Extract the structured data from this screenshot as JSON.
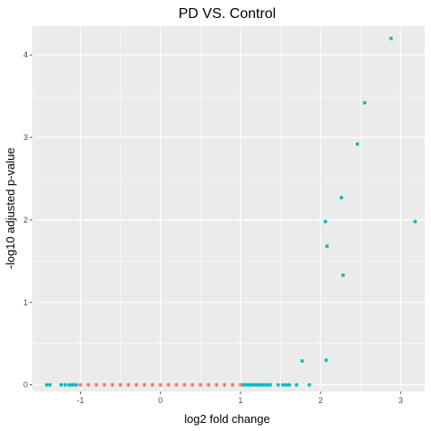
{
  "chart_data": {
    "type": "scatter",
    "title": "PD VS. Control",
    "xlabel": "log2 fold change",
    "ylabel": "-log10 adjusted p-value",
    "xlim": [
      -1.6,
      3.3
    ],
    "ylim": [
      -0.08,
      4.35
    ],
    "x_ticks": [
      -1,
      0,
      1,
      2,
      3
    ],
    "y_ticks": [
      0,
      1,
      2,
      3,
      4
    ],
    "panel_background": "#ebebeb",
    "grid": true,
    "legend": "none",
    "series": [
      {
        "color": "#00bfc4",
        "points": [
          {
            "x": 2.88,
            "y": 4.2
          },
          {
            "x": 2.55,
            "y": 3.42
          },
          {
            "x": 2.46,
            "y": 2.92
          },
          {
            "x": 2.26,
            "y": 2.27
          },
          {
            "x": 2.06,
            "y": 1.98
          },
          {
            "x": 3.18,
            "y": 1.98
          },
          {
            "x": 2.08,
            "y": 1.68
          },
          {
            "x": 2.28,
            "y": 1.33
          },
          {
            "x": 1.77,
            "y": 0.29
          },
          {
            "x": 2.07,
            "y": 0.3
          },
          {
            "x": -1.42,
            "y": 0
          },
          {
            "x": -1.38,
            "y": 0
          },
          {
            "x": -1.24,
            "y": 0
          },
          {
            "x": -1.19,
            "y": 0
          },
          {
            "x": -1.14,
            "y": 0
          },
          {
            "x": -1.11,
            "y": 0
          },
          {
            "x": -1.09,
            "y": 0
          },
          {
            "x": -1.07,
            "y": 0
          },
          {
            "x": -1.05,
            "y": 0
          },
          {
            "x": 1.01,
            "y": 0
          },
          {
            "x": 1.04,
            "y": 0
          },
          {
            "x": 1.07,
            "y": 0
          },
          {
            "x": 1.1,
            "y": 0
          },
          {
            "x": 1.13,
            "y": 0
          },
          {
            "x": 1.16,
            "y": 0
          },
          {
            "x": 1.19,
            "y": 0
          },
          {
            "x": 1.22,
            "y": 0
          },
          {
            "x": 1.25,
            "y": 0
          },
          {
            "x": 1.28,
            "y": 0
          },
          {
            "x": 1.31,
            "y": 0
          },
          {
            "x": 1.34,
            "y": 0
          },
          {
            "x": 1.37,
            "y": 0
          },
          {
            "x": 1.47,
            "y": 0
          },
          {
            "x": 1.53,
            "y": 0
          },
          {
            "x": 1.57,
            "y": 0
          },
          {
            "x": 1.61,
            "y": 0
          },
          {
            "x": 1.7,
            "y": 0
          },
          {
            "x": 1.86,
            "y": 0
          }
        ]
      },
      {
        "color": "#f8766d",
        "points": [
          {
            "x": -1.0,
            "y": 0
          },
          {
            "x": -0.9,
            "y": 0
          },
          {
            "x": -0.8,
            "y": 0
          },
          {
            "x": -0.7,
            "y": 0
          },
          {
            "x": -0.6,
            "y": 0
          },
          {
            "x": -0.5,
            "y": 0
          },
          {
            "x": -0.4,
            "y": 0
          },
          {
            "x": -0.3,
            "y": 0
          },
          {
            "x": -0.2,
            "y": 0
          },
          {
            "x": -0.1,
            "y": 0
          },
          {
            "x": 0.0,
            "y": 0
          },
          {
            "x": 0.1,
            "y": 0
          },
          {
            "x": 0.2,
            "y": 0
          },
          {
            "x": 0.3,
            "y": 0
          },
          {
            "x": 0.4,
            "y": 0
          },
          {
            "x": 0.5,
            "y": 0
          },
          {
            "x": 0.6,
            "y": 0
          },
          {
            "x": 0.7,
            "y": 0
          },
          {
            "x": 0.8,
            "y": 0
          },
          {
            "x": 0.9,
            "y": 0
          },
          {
            "x": 1.0,
            "y": 0
          }
        ]
      }
    ]
  }
}
